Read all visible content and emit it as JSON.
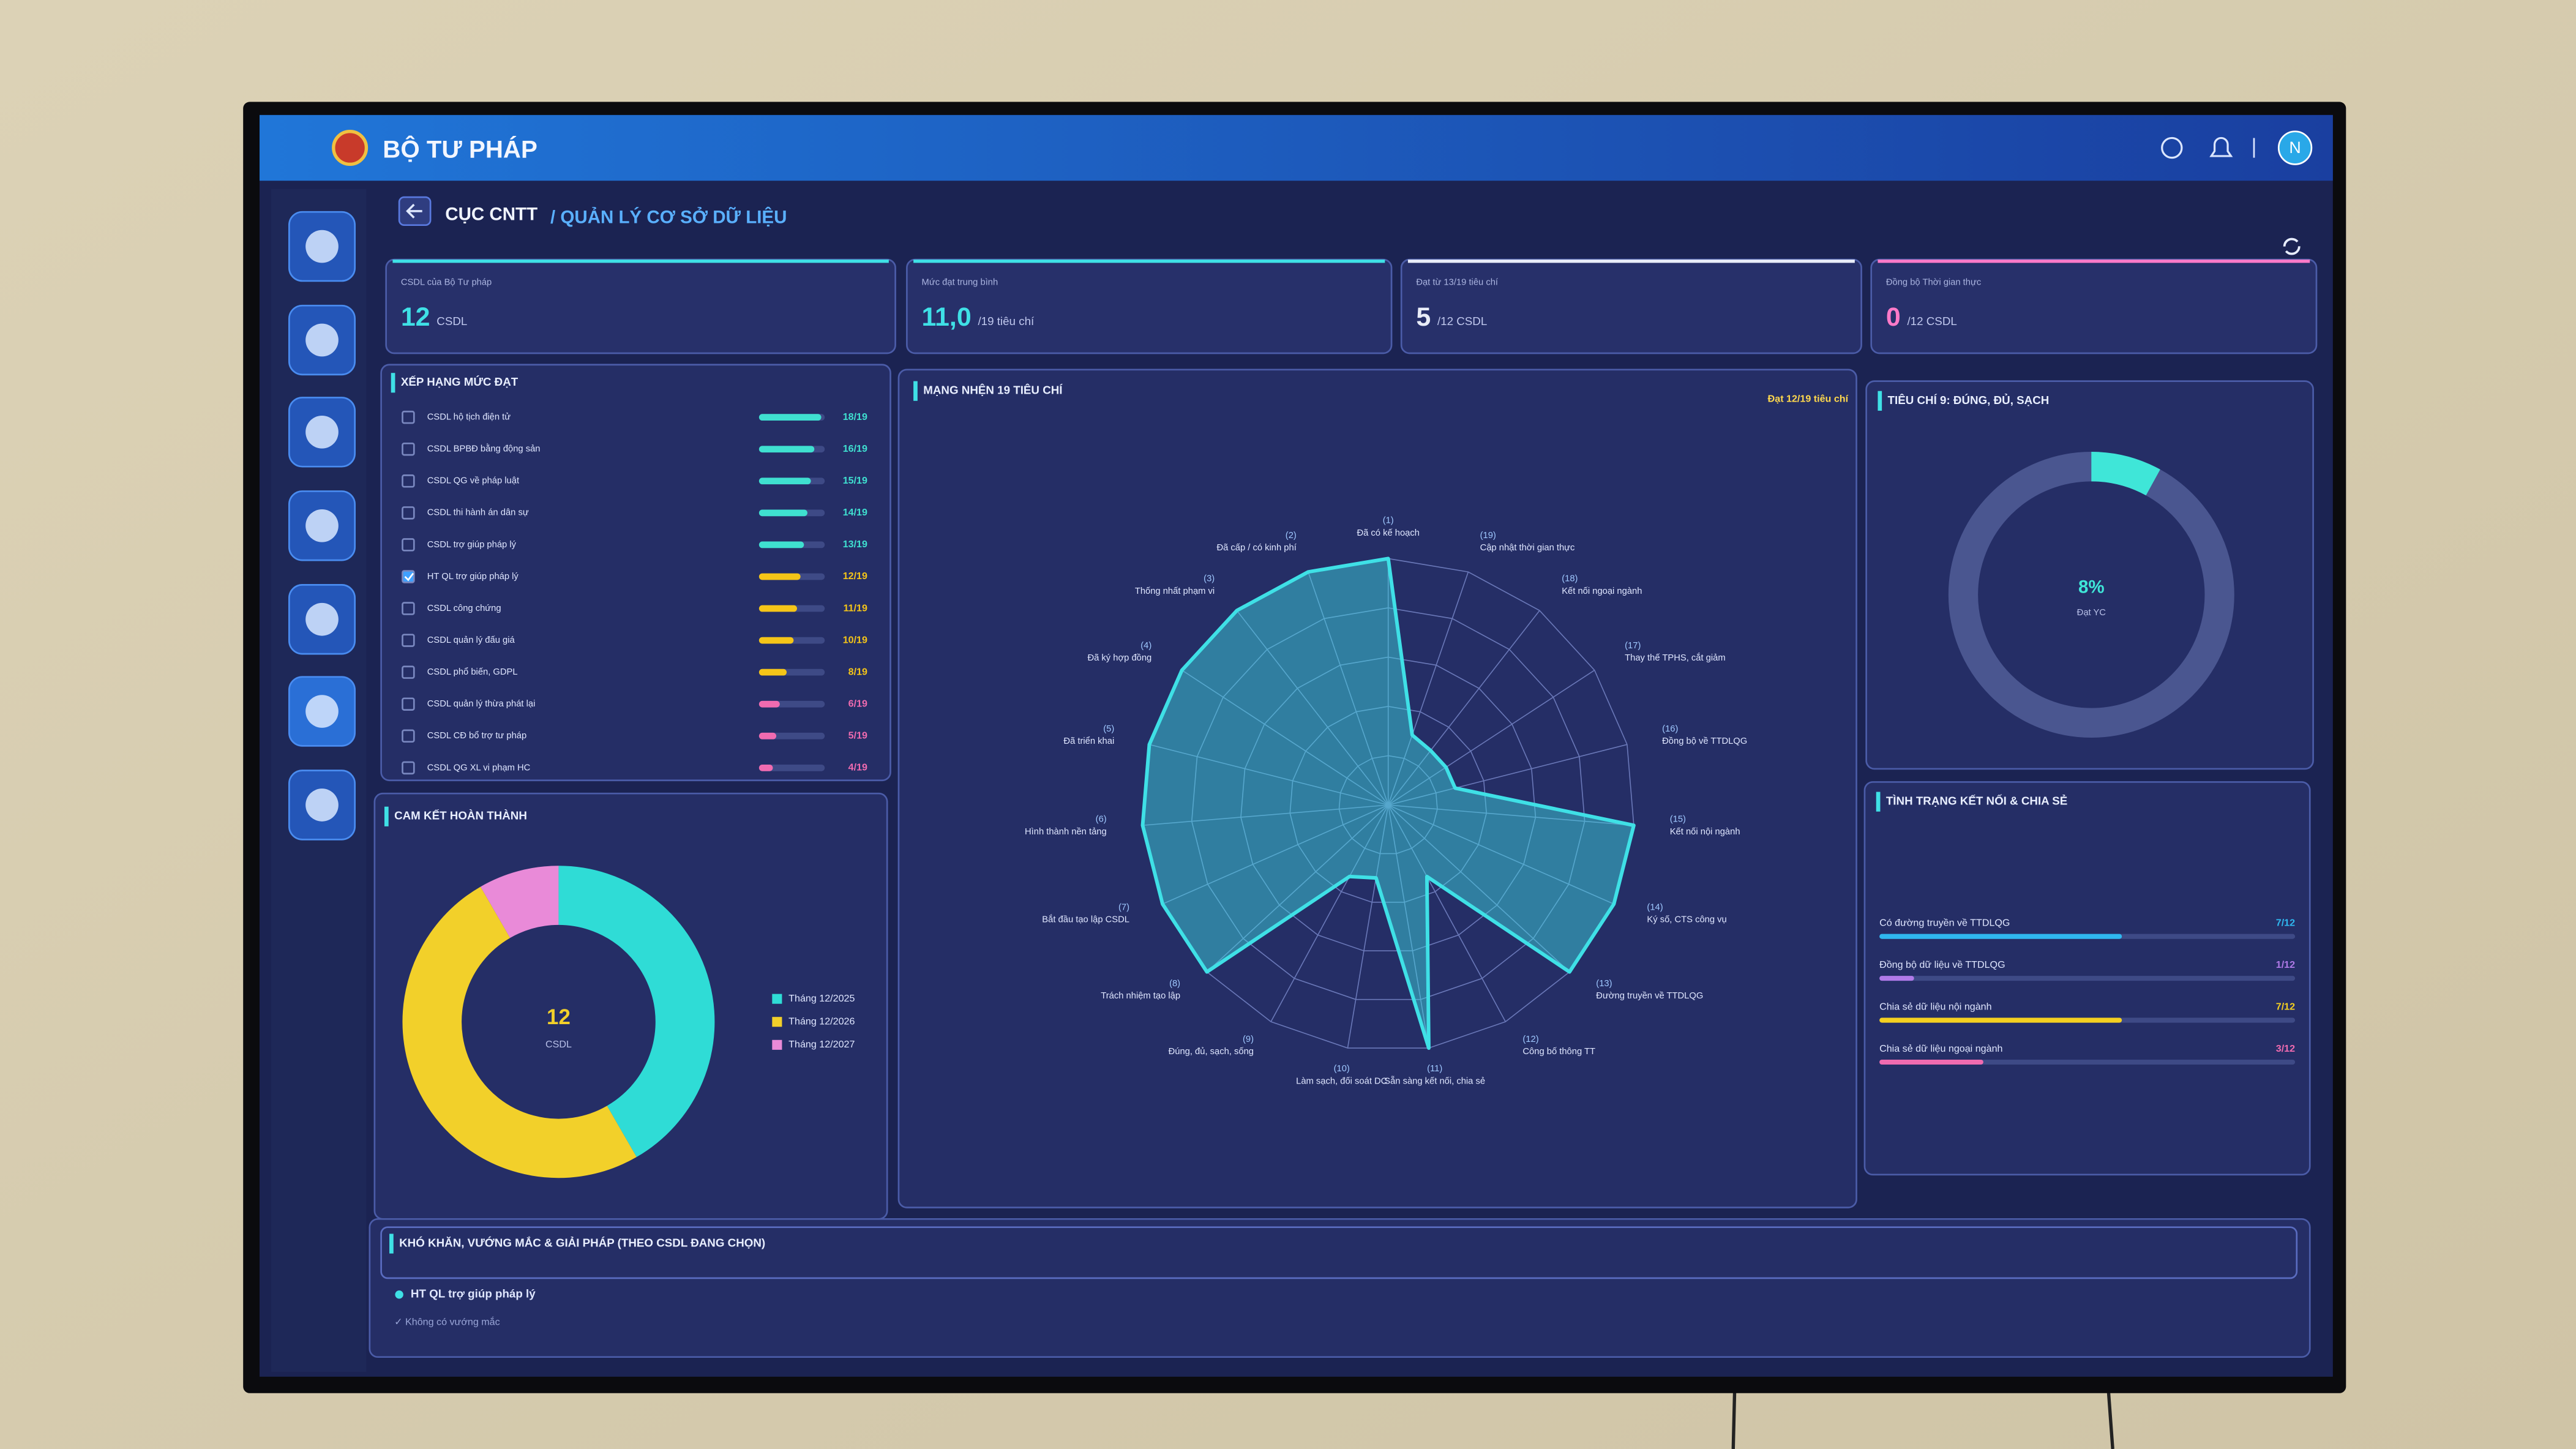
{
  "header": {
    "brand": "BỘ TƯ PHÁP",
    "section": "CỤC CNTT",
    "page": "/ QUẢN LÝ CƠ SỞ DỮ LIỆU",
    "avatar": "N"
  },
  "stats": [
    {
      "label": "CSDL của Bộ Tư pháp",
      "value": "12",
      "unit": "CSDL",
      "color": "#3fe0e6"
    },
    {
      "label": "Mức đạt trung bình",
      "value": "11,0",
      "unit": "/19 tiêu chí",
      "color": "#3fe0e6"
    },
    {
      "label": "Đạt từ 13/19 tiêu chí",
      "value": "5",
      "unit": "/12 CSDL",
      "color": "#e8ecf8"
    },
    {
      "label": "Đồng bộ Thời gian thực",
      "value": "0",
      "unit": "/12 CSDL",
      "color": "#ff7ac8"
    }
  ],
  "chart_data": [
    {
      "type": "bar",
      "orientation": "horizontal",
      "title": "XẾP HẠNG MỨC ĐẠT",
      "categories": [
        "CSDL hộ tịch điện tử",
        "CSDL BPBĐ bằng động sản",
        "CSDL QG về pháp luật",
        "CSDL thi hành án dân sự",
        "CSDL trợ giúp pháp lý",
        "HT QL trợ giúp pháp lý",
        "CSDL công chứng",
        "CSDL quản lý đấu giá",
        "CSDL phổ biến, GDPL",
        "CSDL quản lý thừa phát lại",
        "CSDL CĐ bổ trợ tư pháp",
        "CSDL QG XL vi phạm HC"
      ],
      "values": [
        18,
        16,
        15,
        14,
        13,
        12,
        11,
        10,
        8,
        6,
        5,
        4
      ],
      "value_labels": [
        "18/19",
        "16/19",
        "15/19",
        "14/19",
        "13/19",
        "12/19",
        "11/19",
        "10/19",
        "8/19",
        "6/19",
        "5/19",
        "4/19"
      ],
      "colors": [
        "#3fe0d0",
        "#3fe0d0",
        "#3fe0d0",
        "#3fe0d0",
        "#3fe0d0",
        "#f5c518",
        "#f5c518",
        "#f5c518",
        "#f5c518",
        "#f06bb0",
        "#f06bb0",
        "#f06bb0"
      ],
      "checked": [
        false,
        false,
        false,
        false,
        false,
        true,
        false,
        false,
        false,
        false,
        false,
        false
      ],
      "xlim": [
        0,
        19
      ]
    },
    {
      "type": "donut",
      "title": "CAM KẾT HOÀN THÀNH",
      "center_value": "12",
      "center_label": "CSDL",
      "categories": [
        "Tháng 12/2025",
        "Tháng 12/2026",
        "Tháng 12/2027"
      ],
      "values": [
        5,
        6,
        1
      ],
      "colors": [
        "#2fdcd6",
        "#f2d02a",
        "#e98ad8"
      ]
    },
    {
      "type": "radar",
      "title": "MẠNG NHỆN 19 TIÊU CHÍ",
      "note": "Đạt 12/19 tiêu chí",
      "codes": [
        "(1)",
        "(2)",
        "(3)",
        "(4)",
        "(5)",
        "(6)",
        "(7)",
        "(8)",
        "(9)",
        "(10)",
        "(11)",
        "(12)",
        "(13)",
        "(14)",
        "(15)",
        "(16)",
        "(17)",
        "(18)",
        "(19)"
      ],
      "categories": [
        "Đã có kế hoạch",
        "Đã cấp / có kinh phí",
        "Thống nhất phạm vi",
        "Đã ký hợp đồng",
        "Đã triển khai",
        "Hình thành nền tảng",
        "Bắt đầu tạo lập CSDL",
        "Trách nhiệm tạo lập",
        "Đúng, đủ, sạch, sống",
        "Làm sạch, đối soát DC",
        "Sẵn sàng kết nối, chia sẻ",
        "Công bố thông TT",
        "Đường truyền về TTDLQG",
        "Ký số, CTS công vụ",
        "Kết nối nội ngành",
        "Đồng bộ về TTDLQG",
        "Thay thế TPHS, cắt giảm",
        "Kết nối ngoại ngành",
        "Cập nhật thời gian thực"
      ],
      "values": [
        1,
        1,
        1,
        1,
        1,
        1,
        1,
        1,
        0.33,
        0.3,
        1,
        0.33,
        1,
        1,
        1,
        0.28,
        0.28,
        0.28,
        0.3
      ],
      "rlim": [
        0,
        1
      ],
      "rticks": [
        0.2,
        0.4,
        0.6,
        0.8,
        1
      ],
      "color": "#3fe0e6"
    },
    {
      "type": "gauge",
      "title": "TIÊU CHÍ 9: ĐÚNG, ĐỦ, SẠCH",
      "value": 8,
      "value_label": "8%",
      "label": "Đạt YC",
      "range": [
        0,
        100
      ],
      "color": "#3fe6d8",
      "track_color": "#4a5690"
    },
    {
      "type": "bar",
      "orientation": "horizontal",
      "title": "TÌNH TRẠNG KẾT NỐI & CHIA SẺ",
      "categories": [
        "Có đường truyền về TTDLQG",
        "Đồng bộ dữ liệu về TTDLQG",
        "Chia sẻ dữ liệu nội ngành",
        "Chia sẻ dữ liệu ngoại ngành"
      ],
      "values": [
        7,
        1,
        7,
        3
      ],
      "value_labels": [
        "7/12",
        "1/12",
        "7/12",
        "3/12"
      ],
      "colors": [
        "#2fb8f0",
        "#b07ae8",
        "#f5d020",
        "#f06bb0"
      ],
      "xlim": [
        0,
        12
      ]
    }
  ],
  "issues": {
    "title": "KHÓ KHĂN, VƯỚNG MẮC & GIẢI PHÁP (THEO CSDL ĐANG CHỌN)",
    "item": "HT QL trợ giúp pháp lý",
    "note": "✓ Không có vướng mắc"
  }
}
